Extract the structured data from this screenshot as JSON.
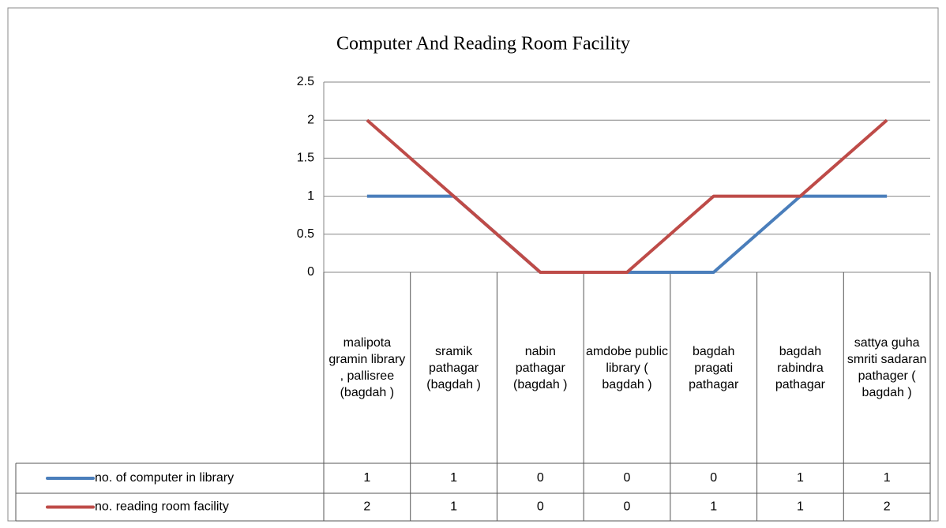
{
  "chart_data": {
    "type": "line",
    "title": "Computer And Reading Room Facility",
    "categories": [
      "malipota gramin library , pallisree (bagdah )",
      "sramik pathagar (bagdah )",
      "nabin pathagar (bagdah )",
      "amdobe public library ( bagdah )",
      "bagdah pragati pathagar",
      "bagdah rabindra pathagar",
      "sattya guha smriti sadaran pathager ( bagdah )"
    ],
    "series": [
      {
        "name": "no. of computer in library",
        "color": "#4a7ebb",
        "values": [
          1,
          1,
          0,
          0,
          0,
          1,
          1
        ]
      },
      {
        "name": "no. reading room facility",
        "color": "#be4b48",
        "values": [
          2,
          1,
          0,
          0,
          1,
          1,
          2
        ]
      }
    ],
    "ylim": [
      0,
      2.5
    ],
    "yticks": [
      0,
      0.5,
      1,
      1.5,
      2,
      2.5
    ],
    "grid": true
  }
}
